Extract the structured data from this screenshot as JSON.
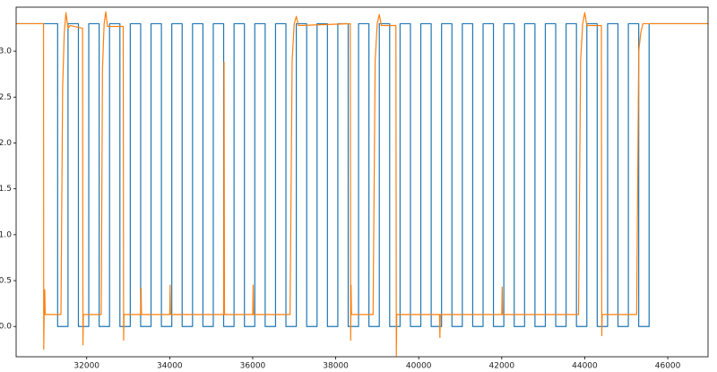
{
  "chart_data": {
    "type": "line",
    "xlim": [
      30300,
      46970
    ],
    "ylim": [
      -0.33,
      3.48
    ],
    "xticks": [
      32000,
      34000,
      36000,
      38000,
      40000,
      42000,
      44000,
      46000
    ],
    "yticks": [
      {
        "value": 0,
        "label": "0.0"
      },
      0.5,
      {
        "value": 1,
        "label": "1.0"
      },
      1.5,
      {
        "value": 2,
        "label": "2.0"
      },
      2.5,
      {
        "value": 3,
        "label": "3.0"
      }
    ],
    "grid": false,
    "series": [
      {
        "color": "#1f77b4",
        "x": [
          30300,
          31300,
          31300,
          31550,
          31550,
          31800,
          31800,
          32050,
          32050,
          32300,
          32300,
          32550,
          32550,
          32800,
          32800,
          33050,
          33050,
          33300,
          33300,
          33550,
          33550,
          33800,
          33800,
          34050,
          34050,
          34300,
          34300,
          34550,
          34550,
          34800,
          34800,
          35050,
          35050,
          35300,
          35300,
          35550,
          35550,
          35800,
          35800,
          36050,
          36050,
          36300,
          36300,
          36550,
          36550,
          36800,
          36800,
          37050,
          37050,
          37300,
          37300,
          37550,
          37550,
          37800,
          37800,
          38050,
          38050,
          38300,
          38300,
          38550,
          38550,
          38800,
          38800,
          39050,
          39050,
          39300,
          39300,
          39550,
          39550,
          39800,
          39800,
          40050,
          40050,
          40300,
          40300,
          40550,
          40550,
          40800,
          40800,
          41050,
          41050,
          41300,
          41300,
          41550,
          41550,
          41800,
          41800,
          42050,
          42050,
          42300,
          42300,
          42550,
          42550,
          42800,
          42800,
          43050,
          43050,
          43300,
          43300,
          43550,
          43550,
          43800,
          43800,
          44050,
          44050,
          44300,
          44300,
          44550,
          44550,
          44800,
          44800,
          45050,
          45050,
          45300,
          45300,
          45550,
          45550,
          46970
        ],
        "values": [
          3.3,
          3.3,
          0,
          0,
          3.3,
          3.3,
          0,
          0,
          3.3,
          3.3,
          0,
          0,
          3.3,
          3.3,
          0,
          0,
          3.3,
          3.3,
          0,
          0,
          3.3,
          3.3,
          0,
          0,
          3.3,
          3.3,
          0,
          0,
          3.3,
          3.3,
          0,
          0,
          3.3,
          3.3,
          0,
          0,
          3.3,
          3.3,
          0,
          0,
          3.3,
          3.3,
          0,
          0,
          3.3,
          3.3,
          0,
          0,
          3.3,
          3.3,
          0,
          0,
          3.3,
          3.3,
          0,
          0,
          3.3,
          3.3,
          0,
          0,
          3.3,
          3.3,
          0,
          0,
          3.3,
          3.3,
          0,
          0,
          3.3,
          3.3,
          0,
          0,
          3.3,
          3.3,
          0,
          0,
          3.3,
          3.3,
          0,
          0,
          3.3,
          3.3,
          0,
          0,
          3.3,
          3.3,
          0,
          0,
          3.3,
          3.3,
          0,
          0,
          3.3,
          3.3,
          0,
          0,
          3.3,
          3.3,
          0,
          0,
          3.3,
          3.3,
          0,
          0,
          3.3,
          3.3,
          0,
          0,
          3.3,
          3.3,
          0,
          0,
          3.3,
          3.3,
          0,
          0,
          3.3,
          3.3
        ]
      },
      {
        "color": "#ff7f0e",
        "x": [
          30300,
          30960,
          30965,
          30975,
          30990,
          31000,
          31380,
          31420,
          31460,
          31500,
          31550,
          31600,
          31900,
          31910,
          31920,
          31940,
          32350,
          32380,
          32420,
          32460,
          32500,
          32880,
          32890,
          32900,
          33300,
          33310,
          33320,
          34000,
          34010,
          34020,
          35300,
          35310,
          35320,
          36000,
          36010,
          36020,
          36900,
          36950,
          37000,
          37050,
          37100,
          38350,
          38360,
          38370,
          38380,
          38900,
          38950,
          39000,
          39050,
          39100,
          39450,
          39460,
          39470,
          40500,
          40510,
          40520,
          42000,
          42010,
          42020,
          43850,
          43900,
          43950,
          44000,
          44050,
          44400,
          44410,
          44420,
          45250,
          45300,
          45350,
          45400,
          45450,
          46970
        ],
        "values": [
          3.3,
          3.3,
          -0.25,
          0.13,
          0.4,
          0.13,
          0.13,
          2.6,
          3.2,
          3.42,
          3.25,
          3.28,
          3.25,
          -0.2,
          0.13,
          0.13,
          0.13,
          2.8,
          3.3,
          3.43,
          3.27,
          3.27,
          -0.15,
          0.13,
          0.13,
          0.42,
          0.13,
          0.13,
          0.45,
          0.13,
          0.13,
          2.88,
          0.13,
          0.13,
          0.45,
          0.13,
          0.13,
          2.9,
          3.3,
          3.38,
          3.28,
          3.3,
          -0.15,
          0.45,
          0.13,
          0.13,
          2.9,
          3.3,
          3.4,
          3.28,
          3.28,
          -0.32,
          0.13,
          0.13,
          -0.12,
          0.13,
          0.13,
          0.43,
          0.13,
          0.13,
          2.9,
          3.3,
          3.42,
          3.28,
          3.28,
          -0.1,
          0.13,
          0.13,
          3.0,
          3.2,
          3.3,
          3.3,
          3.3
        ]
      }
    ]
  }
}
